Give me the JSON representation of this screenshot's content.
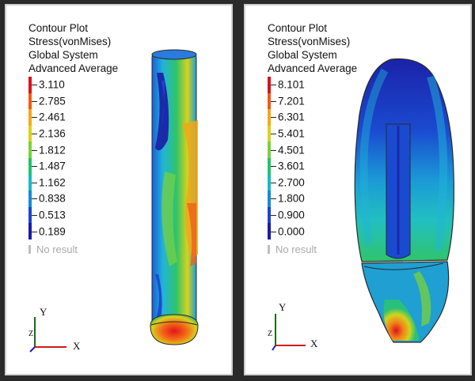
{
  "panels": [
    {
      "header": [
        "Contour Plot",
        "Stress(vonMises)",
        "Global System",
        "Advanced Average"
      ],
      "values": [
        "3.110",
        "2.785",
        "2.461",
        "2.136",
        "1.812",
        "1.487",
        "1.162",
        "0.838",
        "0.513",
        "0.189"
      ],
      "no_result": "No result",
      "axis_y": "Y",
      "axis_x": "X",
      "axis_z": "Z"
    },
    {
      "header": [
        "Contour Plot",
        "Stress(vonMises)",
        "Global System",
        "Advanced Average"
      ],
      "values": [
        "8.101",
        "7.201",
        "6.301",
        "5.401",
        "4.501",
        "3.601",
        "2.700",
        "1.800",
        "0.900",
        "0.000"
      ],
      "no_result": "No result",
      "axis_y": "Y",
      "axis_x": "X",
      "axis_z": "Z"
    }
  ],
  "scale_colors": [
    "#d8141c",
    "#f25a16",
    "#f9a51a",
    "#dcd21b",
    "#7ad23a",
    "#21c46a",
    "#16bcc4",
    "#168ad8",
    "#1a44d0",
    "#1b1aa8"
  ]
}
